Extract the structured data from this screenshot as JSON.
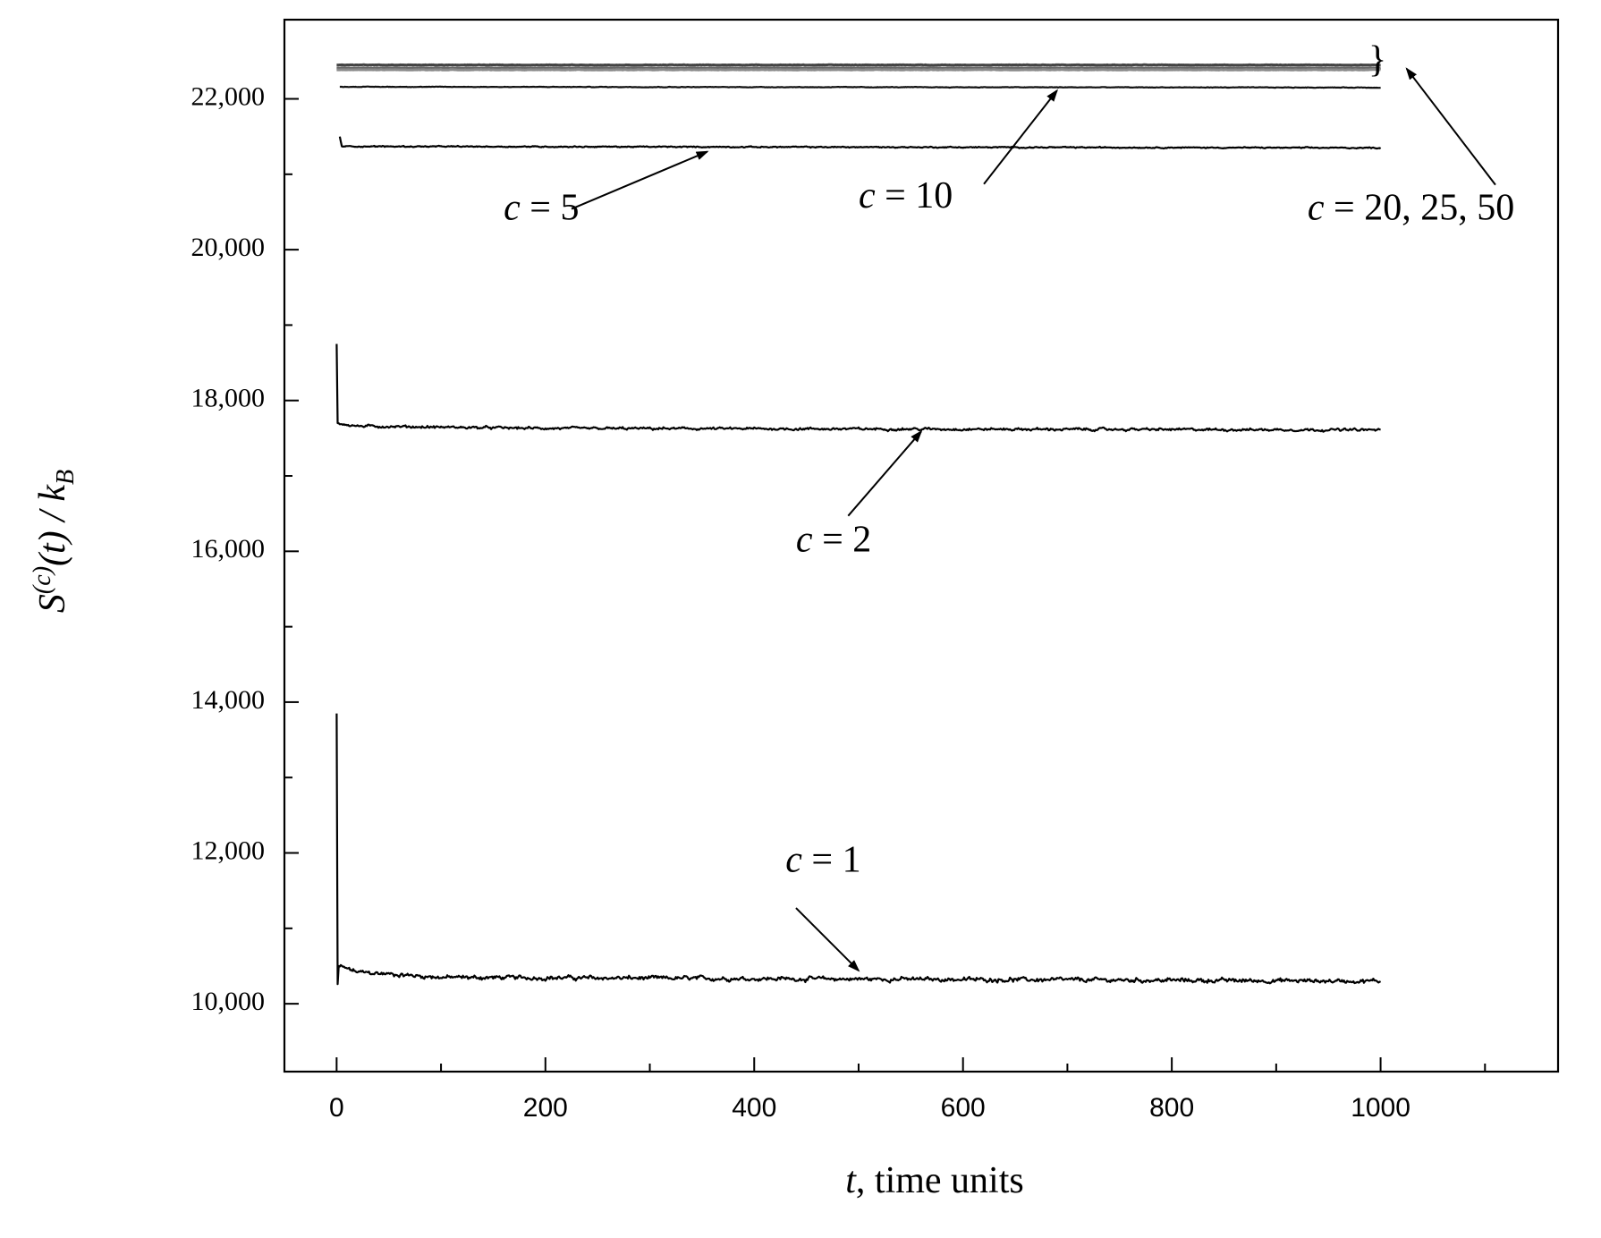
{
  "chart_data": {
    "type": "line",
    "xlabel": {
      "italic": "t",
      "rest": ", time units"
    },
    "ylabel": {
      "S": "S",
      "sup": "(c)",
      "mid": "(t) / k",
      "sub": "B"
    },
    "xlim": [
      -50,
      1170
    ],
    "ylim": [
      9100,
      23050
    ],
    "xticks": [
      0,
      200,
      400,
      600,
      800,
      1000
    ],
    "xticks_minor": [
      100,
      300,
      500,
      700,
      900,
      1100
    ],
    "xtick_labels": [
      "0",
      "200",
      "400",
      "600",
      "800",
      "1000"
    ],
    "yticks": [
      10000,
      12000,
      14000,
      16000,
      18000,
      20000,
      22000
    ],
    "yticks_minor": [
      11000,
      13000,
      15000,
      17000,
      19000,
      21000
    ],
    "ytick_labels": [
      "10,000",
      "12,000",
      "14,000",
      "16,000",
      "18,000",
      "20,000",
      "22,000"
    ],
    "grid": false,
    "legend": "none",
    "series": [
      {
        "name": "c = 1",
        "color": "#000000",
        "x0": 0,
        "x1": 1000,
        "initial": [
          [
            0,
            13850
          ],
          [
            1,
            10260
          ],
          [
            2,
            10500
          ],
          [
            20,
            10420
          ],
          [
            100,
            10350
          ],
          [
            1000,
            10300
          ]
        ],
        "noise": 30
      },
      {
        "name": "c = 2",
        "color": "#000000",
        "x0": 0,
        "x1": 1000,
        "initial": [
          [
            0,
            18750
          ],
          [
            1,
            17700
          ],
          [
            20,
            17660
          ],
          [
            200,
            17630
          ],
          [
            1000,
            17610
          ]
        ],
        "noise": 18
      },
      {
        "name": "c = 5",
        "color": "#000000",
        "x0": 3,
        "x1": 1000,
        "initial": [
          [
            3,
            21500
          ],
          [
            5,
            21370
          ],
          [
            1000,
            21350
          ]
        ],
        "noise": 8
      },
      {
        "name": "c = 10",
        "color": "#111111",
        "x0": 3,
        "x1": 1000,
        "initial": [
          [
            3,
            22160
          ],
          [
            1000,
            22150
          ]
        ],
        "noise": 4
      },
      {
        "name": "c = 20",
        "color": "#444444",
        "x0": 0,
        "x1": 1000,
        "initial": [
          [
            0,
            22450
          ],
          [
            1000,
            22450
          ]
        ],
        "noise": 3
      },
      {
        "name": "c = 25",
        "color": "#666666",
        "x0": 0,
        "x1": 1000,
        "initial": [
          [
            0,
            22410
          ],
          [
            1000,
            22410
          ]
        ],
        "noise": 3
      },
      {
        "name": "c = 50",
        "color": "#8a8a8a",
        "x0": 0,
        "x1": 1000,
        "initial": [
          [
            0,
            22385
          ],
          [
            1000,
            22385
          ]
        ],
        "noise": 3
      }
    ],
    "annotations": [
      {
        "label": "c = 1",
        "c": "c",
        "rest": " = 1",
        "text_at": [
          430,
          11750
        ],
        "arrow_from": [
          440,
          11270
        ],
        "arrow_to": [
          500,
          10440
        ]
      },
      {
        "label": "c = 2",
        "c": "c",
        "rest": " = 2",
        "text_at": [
          440,
          16000
        ],
        "arrow_from": [
          490,
          16470
        ],
        "arrow_to": [
          560,
          17590
        ]
      },
      {
        "label": "c = 5",
        "c": "c",
        "rest": " = 5",
        "text_at": [
          160,
          20400
        ],
        "arrow_from": [
          225,
          20540
        ],
        "arrow_to": [
          355,
          21300
        ]
      },
      {
        "label": "c = 10",
        "c": "c",
        "rest": " = 10",
        "text_at": [
          500,
          20560
        ],
        "arrow_from": [
          620,
          20870
        ],
        "arrow_to": [
          690,
          22110
        ]
      },
      {
        "label": "c = 20, 25, 50",
        "c": "c",
        "rest": " = 20, 25, 50",
        "text_at": [
          930,
          20400
        ],
        "arrow_from": [
          1110,
          20860
        ],
        "arrow_to": [
          1025,
          22400
        ]
      }
    ],
    "brace": "}"
  }
}
